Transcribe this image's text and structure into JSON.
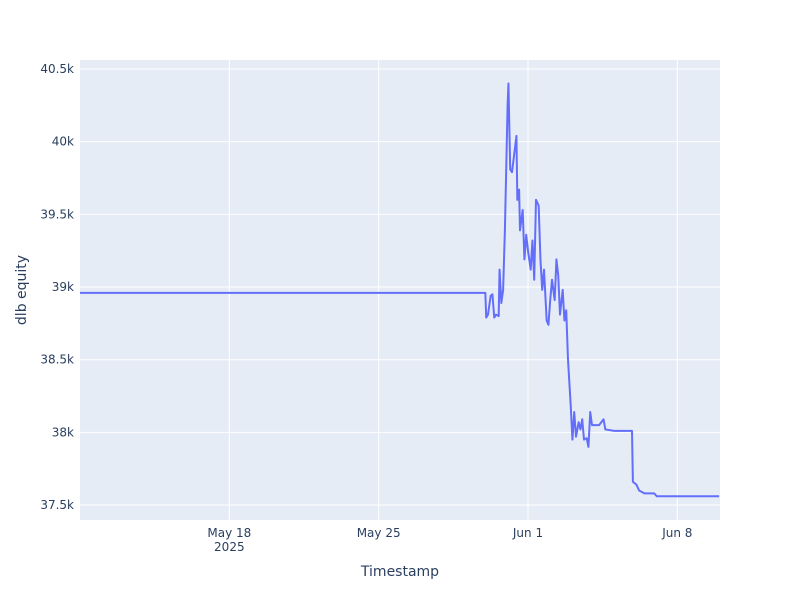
{
  "chart_data": {
    "type": "line",
    "x_label": "Timestamp",
    "y_label": "dlb equity",
    "x": [
      "2025-05-11 00:00",
      "2025-05-30 00:00",
      "2025-05-30 01:00",
      "2025-05-30 03:00",
      "2025-05-30 06:00",
      "2025-05-30 08:00",
      "2025-05-30 10:00",
      "2025-05-30 12:00",
      "2025-05-30 15:00",
      "2025-05-30 16:00",
      "2025-05-30 18:00",
      "2025-05-30 20:00",
      "2025-05-30 22:00",
      "2025-05-31 01:00",
      "2025-05-31 02:00",
      "2025-05-31 04:00",
      "2025-05-31 06:00",
      "2025-05-31 09:00",
      "2025-05-31 11:00",
      "2025-05-31 12:00",
      "2025-05-31 14:00",
      "2025-05-31 15:00",
      "2025-05-31 18:00",
      "2025-05-31 20:00",
      "2025-05-31 22:00",
      "2025-06-01 00:00",
      "2025-06-01 03:00",
      "2025-06-01 05:00",
      "2025-06-01 07:00",
      "2025-06-01 09:00",
      "2025-06-01 12:00",
      "2025-06-01 14:00",
      "2025-06-01 16:00",
      "2025-06-01 18:00",
      "2025-06-01 21:00",
      "2025-06-01 23:00",
      "2025-06-02 01:00",
      "2025-06-02 03:00",
      "2025-06-02 06:00",
      "2025-06-02 08:00",
      "2025-06-02 10:00",
      "2025-06-02 12:00",
      "2025-06-02 15:00",
      "2025-06-02 17:00",
      "2025-06-02 19:00",
      "2025-06-02 21:00",
      "2025-06-03 00:00",
      "2025-06-03 02:00",
      "2025-06-03 04:00",
      "2025-06-03 06:00",
      "2025-06-03 09:00",
      "2025-06-03 11:00",
      "2025-06-03 13:00",
      "2025-06-03 15:00",
      "2025-06-03 18:00",
      "2025-06-03 20:00",
      "2025-06-03 22:00",
      "2025-06-04 00:00",
      "2025-06-04 08:00",
      "2025-06-04 13:00",
      "2025-06-04 15:00",
      "2025-06-05 01:00",
      "2025-06-05 21:00",
      "2025-06-05 22:00",
      "2025-06-06 02:00",
      "2025-06-06 05:00",
      "2025-06-06 11:00",
      "2025-06-06 22:00",
      "2025-06-07 01:00",
      "2025-06-09 23:00"
    ],
    "series": [
      {
        "name": "dlb equity",
        "color": "#636efa",
        "values": [
          38960,
          38960,
          38790,
          38810,
          38940,
          38950,
          38790,
          38810,
          38800,
          39120,
          38890,
          38980,
          39390,
          40240,
          40400,
          39810,
          39790,
          39940,
          40040,
          39600,
          39670,
          39390,
          39530,
          39190,
          39360,
          39250,
          39120,
          39320,
          39050,
          39600,
          39560,
          39190,
          38980,
          39120,
          38770,
          38740,
          38910,
          39050,
          38910,
          39190,
          39080,
          38810,
          38980,
          38770,
          38840,
          38500,
          38190,
          37950,
          38140,
          37970,
          38070,
          38020,
          38090,
          37950,
          37960,
          37900,
          38140,
          38050,
          38050,
          38090,
          38020,
          38010,
          38010,
          37660,
          37640,
          37600,
          37580,
          37580,
          37560,
          37560
        ]
      }
    ],
    "xlim": [
      "2025-05-11 00:00",
      "2025-06-10 00:00"
    ],
    "xticks": [
      {
        "value": "2025-05-18 00:00",
        "label": "May 18\n2025"
      },
      {
        "value": "2025-05-25 00:00",
        "label": "May 25"
      },
      {
        "value": "2025-06-01 00:00",
        "label": "Jun 1"
      },
      {
        "value": "2025-06-08 00:00",
        "label": "Jun 8"
      }
    ],
    "ylim": [
      37397,
      40562
    ],
    "yticks": [
      {
        "value": 37500,
        "label": "37.5k"
      },
      {
        "value": 38000,
        "label": "38k"
      },
      {
        "value": 38500,
        "label": "38.5k"
      },
      {
        "value": 39000,
        "label": "39k"
      },
      {
        "value": 39500,
        "label": "39.5k"
      },
      {
        "value": 40000,
        "label": "40k"
      },
      {
        "value": 40500,
        "label": "40.5k"
      }
    ],
    "grid": true
  }
}
